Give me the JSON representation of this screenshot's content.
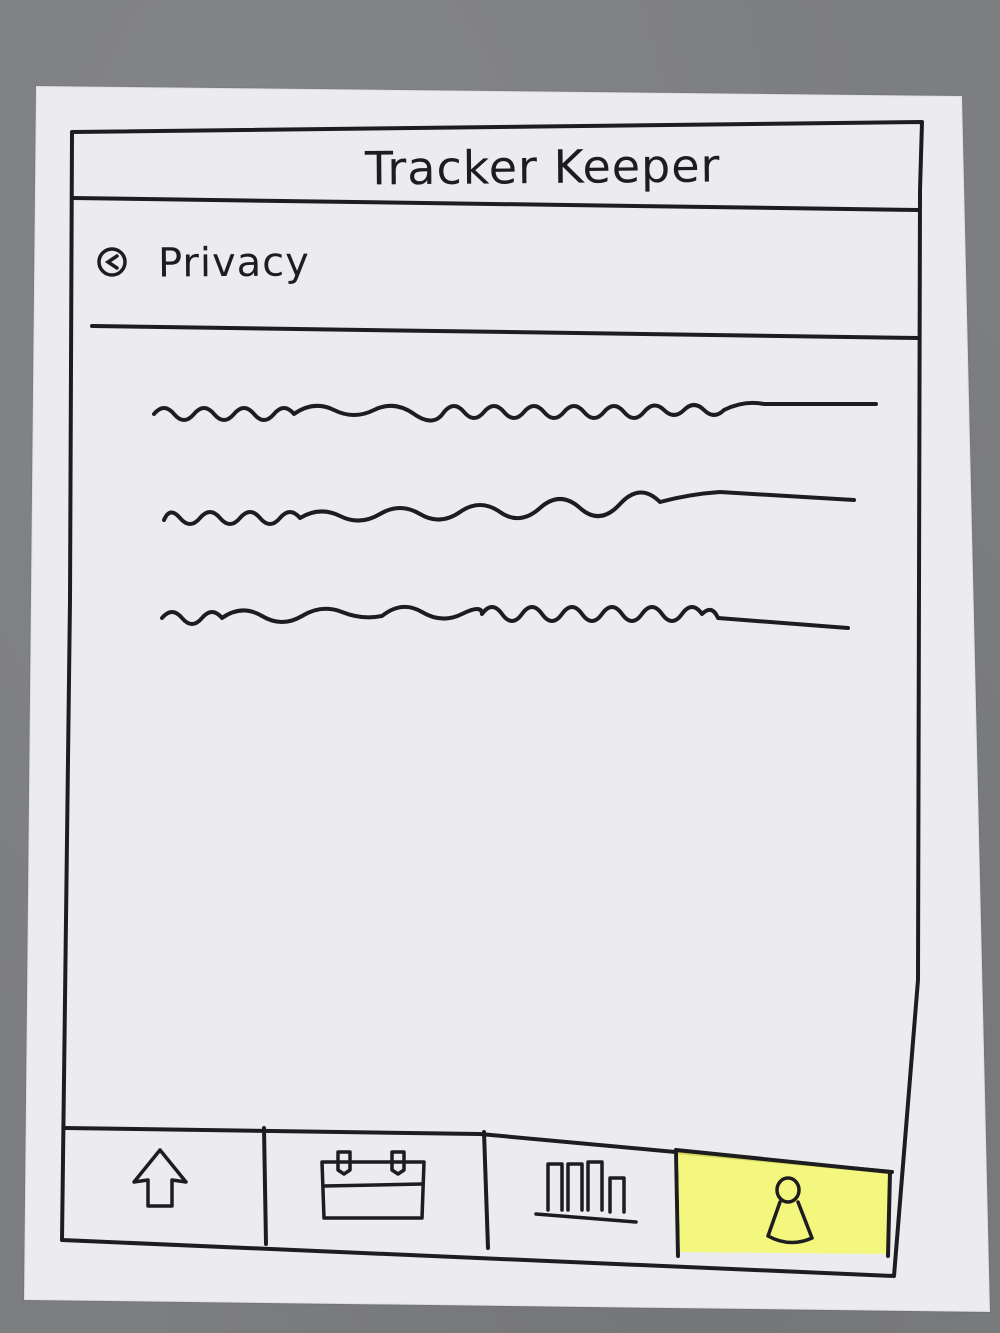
{
  "header": {
    "app_title": "Tracker Keeper"
  },
  "page": {
    "title": "Privacy",
    "content_lines": 3
  },
  "bottom_nav": {
    "items": [
      {
        "name": "home",
        "icon": "home-icon",
        "active": false
      },
      {
        "name": "calendar",
        "icon": "calendar-icon",
        "active": false
      },
      {
        "name": "stats",
        "icon": "bar-chart-icon",
        "active": false
      },
      {
        "name": "profile",
        "icon": "person-icon",
        "active": true
      }
    ],
    "active_color": "#f4f96a"
  },
  "colors": {
    "paper": "#ececef",
    "ink": "#1d1d1f",
    "background": "#7d7e80"
  }
}
